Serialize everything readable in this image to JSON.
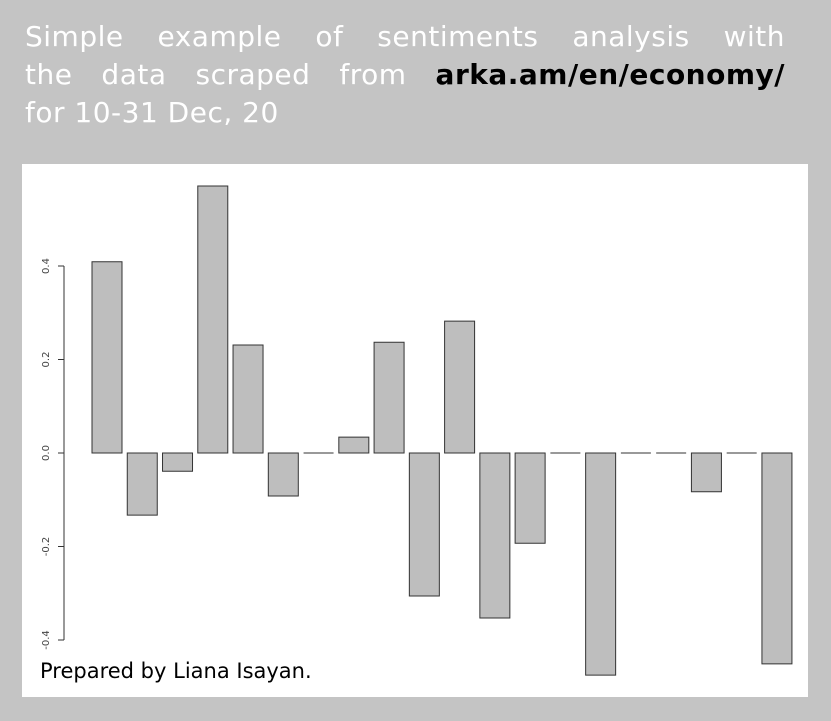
{
  "chart_data": {
    "type": "bar",
    "title": [
      "Simple example of sentiments analysis with",
      "the data scraped from",
      "for 10-31 Dec, 20"
    ],
    "title_link": "arka.am/en/economy/",
    "footer": "Prepared by Liana Isayan.",
    "categories": [
      null,
      null,
      null,
      null,
      null,
      null,
      null,
      null,
      null,
      null,
      null,
      null,
      null,
      null,
      null,
      null,
      null,
      null,
      null,
      null
    ],
    "values": [
      0.409,
      -0.133,
      -0.039,
      0.571,
      0.231,
      -0.092,
      0,
      0.034,
      0.237,
      -0.306,
      0.282,
      -0.353,
      -0.193,
      0,
      -0.475,
      0,
      0,
      -0.083,
      0,
      -0.451
    ],
    "color": "#bebebe",
    "ylim": [
      -0.5,
      0.6
    ],
    "yticks": [
      -0.4,
      -0.2,
      {
        "value": 0.0,
        "label": "0.0"
      },
      0.2,
      0.4
    ],
    "grid": false
  }
}
